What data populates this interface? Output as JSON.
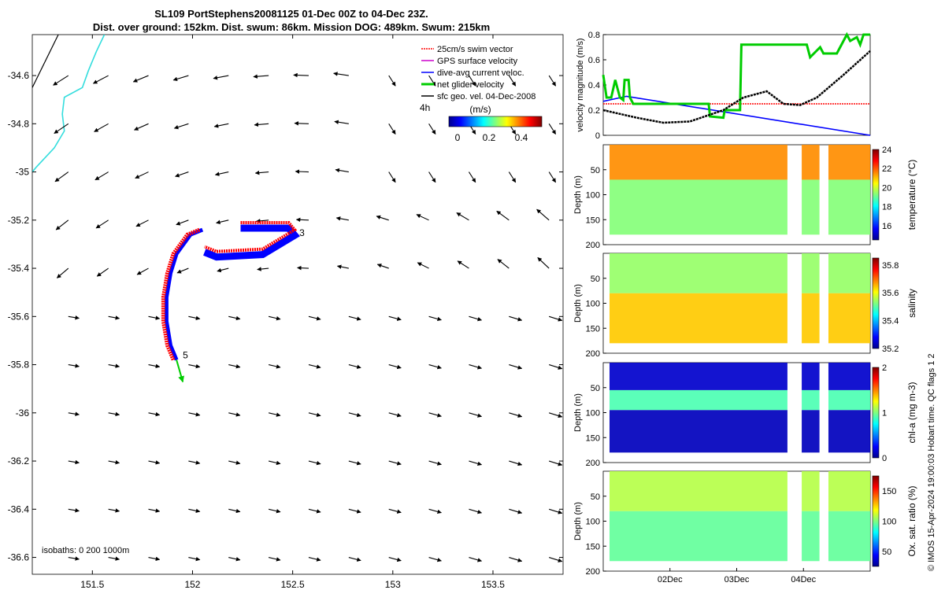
{
  "title": {
    "line1": "SL109 PortStephens20081125 01-Dec 00Z to 04-Dec 23Z.",
    "line2": "Dist. over ground: 152km. Dist. swum: 86km. Mission DOG: 489km. Swum: 215km"
  },
  "side_label": "© IMOS 15-Apr-2024 19:00:03 Hobart time. QC flags 1  2",
  "colors": {
    "swim_vector": "#ff0000",
    "gps_velocity": "#cc00cc",
    "current": "#0000ff",
    "net_velocity": "#00cc00",
    "geo": "#000000",
    "coast": "#33dddd"
  },
  "chart_data": [
    {
      "type": "map",
      "legend": {
        "items": [
          {
            "label": "25cm/s swim vector",
            "color": "#ff0000"
          },
          {
            "label": "GPS surface velocity",
            "color": "#cc00cc"
          },
          {
            "label": "dive-avg current veloc.",
            "color": "#0000ff"
          },
          {
            "label": "net glider velocity",
            "color": "#00cc00"
          },
          {
            "label": "sfc geo. vel. 04-Dec-2008",
            "color": "#000000"
          }
        ],
        "scale_label": "4h",
        "colorbar_label": "(m/s)",
        "colorbar_ticks": [
          "0",
          "0.2",
          "0.4"
        ]
      },
      "x_ticks": [
        "151.5",
        "152",
        "152.5",
        "153",
        "153.5"
      ],
      "y_ticks": [
        "-34.6",
        "-34.8",
        "-35",
        "-35.2",
        "-35.4",
        "-35.6",
        "-35.8",
        "-36",
        "-36.2",
        "-36.4",
        "-36.6"
      ],
      "xlim": [
        151.2,
        153.85
      ],
      "ylim": [
        -36.67,
        -34.43
      ],
      "isobaths_label": "isobaths: 0   200  1000m",
      "track_labels": [
        "3",
        "5"
      ],
      "glider_track": [
        [
          152.05,
          -35.24
        ],
        [
          151.99,
          -35.26
        ],
        [
          151.92,
          -35.34
        ],
        [
          151.89,
          -35.42
        ],
        [
          151.87,
          -35.52
        ],
        [
          151.87,
          -35.62
        ],
        [
          151.89,
          -35.72
        ],
        [
          151.92,
          -35.78
        ]
      ],
      "glider_loop": [
        [
          152.24,
          -35.22
        ],
        [
          152.48,
          -35.22
        ],
        [
          152.51,
          -35.25
        ],
        [
          152.35,
          -35.33
        ],
        [
          152.12,
          -35.34
        ],
        [
          152.06,
          -35.32
        ]
      ]
    },
    {
      "type": "line",
      "ylabel": "velocity magnitude (m/s)",
      "ylim": [
        0,
        0.8
      ],
      "y_ticks": [
        "0",
        "0.2",
        "0.4",
        "0.6",
        "0.8"
      ],
      "series": [
        {
          "color": "#ff0000",
          "x": [
            0,
            4
          ],
          "y": [
            0.25,
            0.25
          ]
        },
        {
          "color": "#0000ff",
          "x": [
            0,
            0.35,
            4
          ],
          "y": [
            0.27,
            0.31,
            0.0
          ]
        },
        {
          "color": "#00cc00",
          "x": [
            0,
            0.05,
            0.12,
            0.18,
            0.25,
            0.3,
            0.32,
            0.38,
            0.4,
            0.45,
            0.5,
            0.6,
            1.0,
            1.3,
            1.58,
            1.6,
            1.8,
            1.82,
            1.9,
            2.05,
            2.07,
            2.5,
            3.05,
            3.1,
            3.25,
            3.3,
            3.5,
            3.6,
            3.65,
            3.7,
            3.8,
            3.85,
            3.9,
            4.0
          ],
          "y": [
            0.48,
            0.3,
            0.3,
            0.44,
            0.3,
            0.28,
            0.44,
            0.44,
            0.3,
            0.25,
            0.25,
            0.25,
            0.25,
            0.25,
            0.25,
            0.15,
            0.14,
            0.2,
            0.2,
            0.2,
            0.72,
            0.72,
            0.72,
            0.62,
            0.7,
            0.65,
            0.65,
            0.75,
            0.8,
            0.75,
            0.78,
            0.72,
            0.8,
            0.8
          ]
        },
        {
          "color": "#000000",
          "x": [
            0,
            0.5,
            0.9,
            1.3,
            1.8,
            2.1,
            2.45,
            2.7,
            2.95,
            3.2,
            3.6,
            4.0
          ],
          "y": [
            0.2,
            0.14,
            0.1,
            0.11,
            0.2,
            0.3,
            0.35,
            0.25,
            0.24,
            0.3,
            0.48,
            0.67
          ]
        }
      ]
    },
    {
      "type": "heatmap",
      "ylabel": "Depth (m)",
      "clabel": "temperature (°C)",
      "ylim": [
        200,
        0
      ],
      "y_ticks": [
        "50",
        "100",
        "150",
        "200"
      ],
      "c_ticks": [
        "16",
        "18",
        "20",
        "22",
        "24"
      ],
      "clim": [
        14.5,
        24
      ],
      "layers": [
        {
          "depth_to": 70,
          "value": 21.5
        },
        {
          "depth_to": 180,
          "value": 19.3
        }
      ]
    },
    {
      "type": "heatmap",
      "ylabel": "Depth (m)",
      "clabel": "salinity",
      "ylim": [
        200,
        0
      ],
      "y_ticks": [
        "50",
        "100",
        "150",
        "200"
      ],
      "c_ticks": [
        "35.2",
        "35.4",
        "35.6",
        "35.8"
      ],
      "clim": [
        35.2,
        35.85
      ],
      "layers": [
        {
          "depth_to": 80,
          "value": 35.54
        },
        {
          "depth_to": 180,
          "value": 35.64
        }
      ]
    },
    {
      "type": "heatmap",
      "ylabel": "Depth (m)",
      "clabel": "chl-a (mg m-3)",
      "ylim": [
        200,
        0
      ],
      "y_ticks": [
        "50",
        "100",
        "150",
        "200"
      ],
      "c_ticks": [
        "0",
        "1",
        "2"
      ],
      "clim": [
        0,
        2
      ],
      "layers": [
        {
          "depth_to": 55,
          "value": 0.15
        },
        {
          "depth_to": 95,
          "value": 0.9
        },
        {
          "depth_to": 180,
          "value": 0.12
        }
      ]
    },
    {
      "type": "heatmap",
      "ylabel": "Depth (m)",
      "clabel": "Ox. sat. ratio (%)",
      "ylim": [
        200,
        0
      ],
      "y_ticks": [
        "50",
        "100",
        "150",
        "200"
      ],
      "c_ticks": [
        "50",
        "100",
        "150"
      ],
      "clim": [
        25,
        175
      ],
      "layers": [
        {
          "depth_to": 80,
          "value": 108
        },
        {
          "depth_to": 180,
          "value": 96
        }
      ],
      "x_ticks": [
        "02Dec",
        "03Dec",
        "04Dec"
      ]
    }
  ]
}
